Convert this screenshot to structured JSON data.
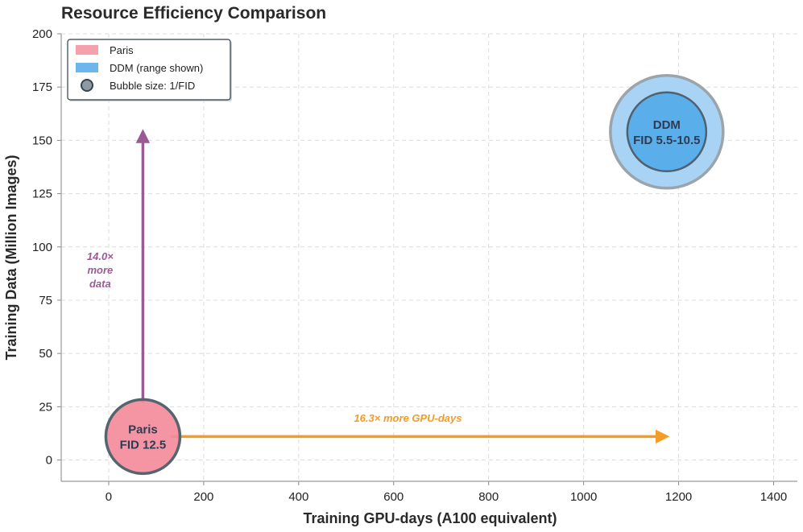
{
  "chart_data": {
    "type": "scatter",
    "title": "Resource Efficiency Comparison",
    "xlabel": "Training GPU-days (A100 equivalent)",
    "ylabel": "Training Data (Million Images)",
    "xlim": [
      -100,
      1450
    ],
    "ylim": [
      -10,
      200
    ],
    "xticks": [
      0,
      200,
      400,
      600,
      800,
      1000,
      1200,
      1400
    ],
    "yticks": [
      0,
      25,
      50,
      75,
      100,
      125,
      150,
      175,
      200
    ],
    "grid": true,
    "legend_position": "top-left",
    "series": [
      {
        "name": "Paris",
        "x": 72,
        "y": 11,
        "label_line1": "Paris",
        "label_line2": "FID 12.5",
        "fid": 12.5,
        "color": "#f4899a"
      },
      {
        "name": "DDM",
        "x": 1175,
        "y": 154,
        "label_line1": "DDM",
        "label_line2": "FID 5.5-10.5",
        "fid_range": [
          5.5,
          10.5
        ],
        "color_outer": "#a9d3f4",
        "color_inner": "#5aaeea"
      }
    ],
    "legend": [
      {
        "label": "Paris",
        "kind": "patch",
        "color": "#f5a0ad"
      },
      {
        "label": "DDM (range shown)",
        "kind": "patch",
        "color": "#6cb6ee"
      },
      {
        "label": "Bubble size: 1/FID",
        "kind": "marker",
        "color": "#8e9aa3"
      }
    ],
    "annotations": [
      {
        "id": "data",
        "lines": [
          "14.0×",
          "more",
          "data"
        ],
        "from": [
          72,
          27
        ],
        "to": [
          72,
          154
        ],
        "text_at": [
          -18,
          87
        ],
        "color": "#9b5a96"
      },
      {
        "id": "gpu",
        "text": "16.3× more GPU-days",
        "from": [
          130,
          11
        ],
        "to": [
          1175,
          11
        ],
        "text_at": [
          630,
          18
        ],
        "color": "#f39c26"
      }
    ]
  }
}
